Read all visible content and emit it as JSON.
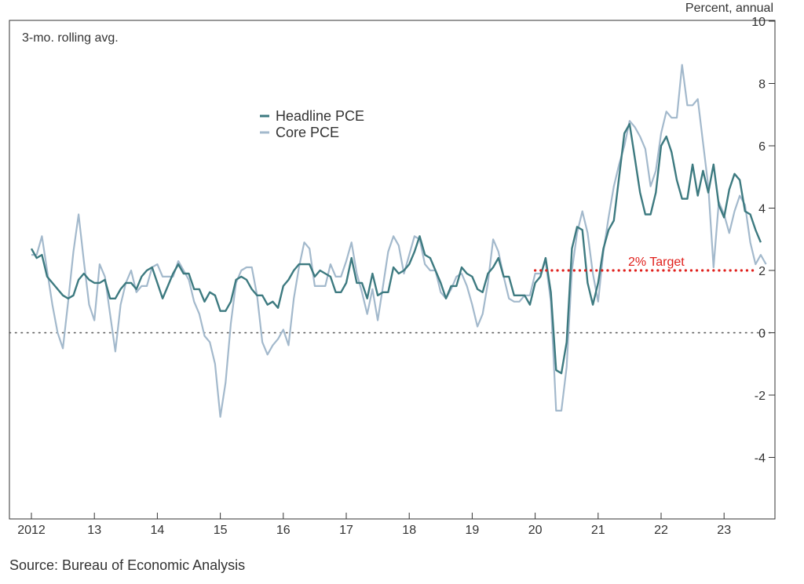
{
  "chart_data": {
    "type": "line",
    "y_unit_label": "Percent, annual",
    "rolling_label": "3-mo. rolling avg.",
    "source": "Source: Bureau of Economic Analysis",
    "xlim": [
      2012,
      2023.75
    ],
    "ylim": [
      -6,
      10
    ],
    "yticks": [
      -4,
      -2,
      0,
      2,
      4,
      6,
      8,
      10
    ],
    "ytick_labels": [
      "-4",
      "-2",
      "0",
      "2",
      "4",
      "6",
      "8",
      "10"
    ],
    "xticks": [
      2012,
      2013,
      2014,
      2015,
      2016,
      2017,
      2018,
      2019,
      2020,
      2021,
      2022,
      2023
    ],
    "xtick_labels": [
      "2012",
      "13",
      "14",
      "15",
      "16",
      "17",
      "18",
      "19",
      "20",
      "21",
      "22",
      "23"
    ],
    "colors": {
      "headline": "#3d7a80",
      "core": "#a3b9cc",
      "target": "#e0201c",
      "zero": "#555555",
      "axis": "#333333"
    },
    "target": {
      "label": "2% Target",
      "value": 2,
      "x_start": 2020.0,
      "x_end": 2023.5
    },
    "zero_line": {
      "value": 0,
      "style": "dotted"
    },
    "legend_position": "upper-center",
    "series": [
      {
        "name": "Headline PCE",
        "key": "headline",
        "start": 2012.0,
        "step": 0.08333,
        "values": [
          2.7,
          2.4,
          2.5,
          1.8,
          1.6,
          1.4,
          1.2,
          1.1,
          1.2,
          1.7,
          1.9,
          1.7,
          1.6,
          1.6,
          1.7,
          1.1,
          1.1,
          1.4,
          1.6,
          1.6,
          1.4,
          1.8,
          2.0,
          2.1,
          1.6,
          1.1,
          1.5,
          1.9,
          2.2,
          1.9,
          1.9,
          1.4,
          1.4,
          1.0,
          1.3,
          1.2,
          0.7,
          0.7,
          1.0,
          1.7,
          1.8,
          1.7,
          1.4,
          1.2,
          1.2,
          0.9,
          1.0,
          0.8,
          1.5,
          1.7,
          2.0,
          2.2,
          2.2,
          2.2,
          1.8,
          2.0,
          1.9,
          1.8,
          1.3,
          1.3,
          1.6,
          2.4,
          1.6,
          1.6,
          1.1,
          1.9,
          1.2,
          1.3,
          1.3,
          2.1,
          1.9,
          2.0,
          2.2,
          2.6,
          3.1,
          2.5,
          2.4,
          2.0,
          1.6,
          1.1,
          1.5,
          1.5,
          2.1,
          1.9,
          1.8,
          1.4,
          1.3,
          1.9,
          2.1,
          2.4,
          1.8,
          1.8,
          1.2,
          1.2,
          1.2,
          0.9,
          1.6,
          1.8,
          2.4,
          1.3,
          -1.2,
          -1.3,
          -0.3,
          2.7,
          3.4,
          3.3,
          1.6,
          0.9,
          1.6,
          2.7,
          3.3,
          3.6,
          5.0,
          6.4,
          6.7,
          5.6,
          4.5,
          3.8,
          3.8,
          4.5,
          6.0,
          6.3,
          5.8,
          4.9,
          4.3,
          4.3,
          5.4,
          4.4,
          5.2,
          4.5,
          5.4,
          4.1,
          3.7,
          4.6,
          5.1,
          4.9,
          3.9,
          3.8,
          3.3,
          2.9
        ]
      },
      {
        "name": "Core PCE",
        "key": "core",
        "start": 2012.0,
        "step": 0.08333,
        "values": [
          2.5,
          2.5,
          3.1,
          2.0,
          0.9,
          0.0,
          -0.5,
          1.0,
          2.6,
          3.8,
          2.3,
          0.9,
          0.4,
          2.2,
          1.8,
          0.6,
          -0.6,
          0.9,
          1.6,
          2.0,
          1.3,
          1.5,
          1.5,
          2.1,
          2.2,
          1.8,
          1.8,
          1.8,
          2.3,
          2.0,
          1.7,
          1.0,
          0.6,
          -0.1,
          -0.3,
          -1.0,
          -2.7,
          -1.6,
          0.3,
          1.6,
          2.0,
          2.1,
          2.1,
          1.2,
          -0.3,
          -0.7,
          -0.4,
          -0.2,
          0.1,
          -0.4,
          1.1,
          2.1,
          2.9,
          2.7,
          1.5,
          1.5,
          1.5,
          2.2,
          1.8,
          1.8,
          2.3,
          2.9,
          1.9,
          1.3,
          0.6,
          1.4,
          0.4,
          1.5,
          2.6,
          3.1,
          2.8,
          1.9,
          2.5,
          3.1,
          3.0,
          2.2,
          2.0,
          2.0,
          1.3,
          1.1,
          1.4,
          1.8,
          1.9,
          1.5,
          0.9,
          0.2,
          0.6,
          1.6,
          3.0,
          2.6,
          1.8,
          1.1,
          1.0,
          1.0,
          1.2,
          1.2,
          1.9,
          1.9,
          2.3,
          1.0,
          -2.5,
          -2.5,
          -1.1,
          2.0,
          3.2,
          3.9,
          3.2,
          1.9,
          1.0,
          2.6,
          3.7,
          4.7,
          5.4,
          6.0,
          6.8,
          6.6,
          6.3,
          5.9,
          4.7,
          5.2,
          6.4,
          7.1,
          6.9,
          6.9,
          8.6,
          7.3,
          7.3,
          7.5,
          6.1,
          4.7,
          2.1,
          4.2,
          3.8,
          3.2,
          3.9,
          4.4,
          4.1,
          2.9,
          2.2,
          2.5,
          2.2
        ]
      }
    ]
  }
}
